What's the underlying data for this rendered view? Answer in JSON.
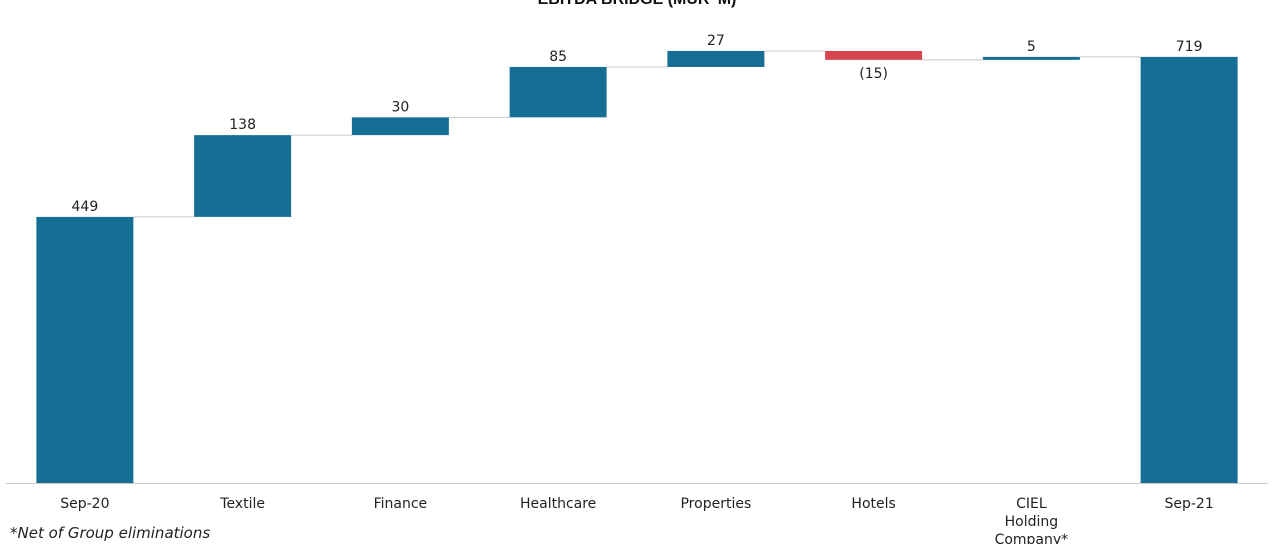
{
  "chart_data": {
    "type": "waterfall",
    "title": "EBITDA BRIDGE (MUR 'M)",
    "categories": [
      "Sep-20",
      "Textile",
      "Finance",
      "Healthcare",
      "Properties",
      "Hotels",
      "CIEL Holding Company*",
      "Sep-21"
    ],
    "steps": [
      {
        "category": "Sep-20",
        "kind": "total",
        "value": 449,
        "label": "449"
      },
      {
        "category": "Textile",
        "kind": "delta",
        "value": 138,
        "label": "138"
      },
      {
        "category": "Finance",
        "kind": "delta",
        "value": 30,
        "label": "30"
      },
      {
        "category": "Healthcare",
        "kind": "delta",
        "value": 85,
        "label": "85"
      },
      {
        "category": "Properties",
        "kind": "delta",
        "value": 27,
        "label": "27"
      },
      {
        "category": "Hotels",
        "kind": "delta",
        "value": -15,
        "label": "(15)"
      },
      {
        "category": "CIEL Holding Company*",
        "kind": "delta",
        "value": 5,
        "label": "5"
      },
      {
        "category": "Sep-21",
        "kind": "total",
        "value": 719,
        "label": "719"
      }
    ],
    "colors": {
      "increase": "#176e94",
      "decrease": "#d6444f",
      "total": "#176e94",
      "connector": "#c8c8c8",
      "axis": "#c8c8c8"
    },
    "ylim": [
      0,
      734
    ],
    "xlabel": "",
    "ylabel": ""
  },
  "footnote": "*Net of Group eliminations"
}
